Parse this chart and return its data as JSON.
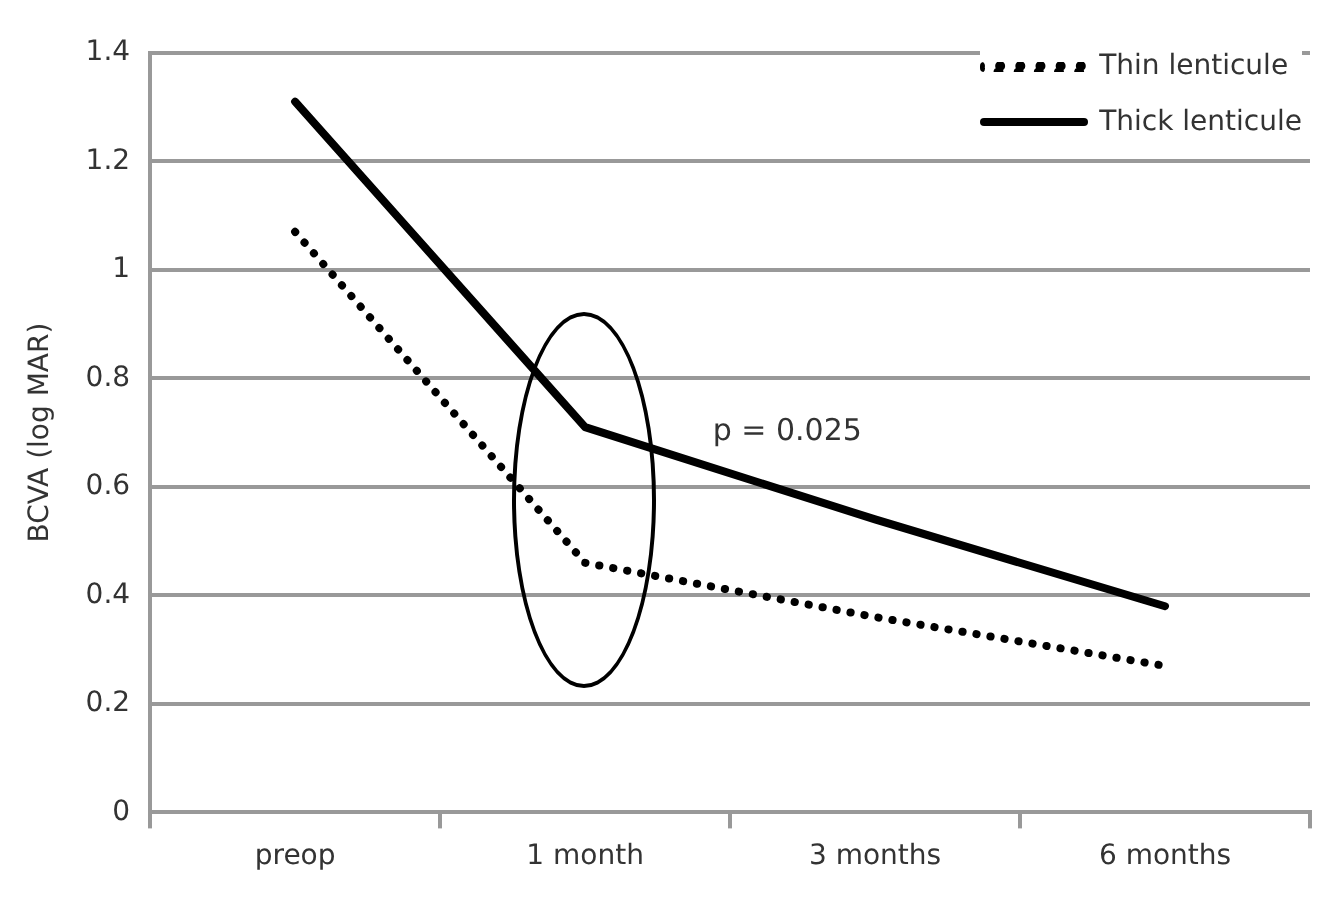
{
  "chart_data": {
    "type": "line",
    "ylabel": "BCVA (log MAR)",
    "categories": [
      "preop",
      "1 month",
      "3 months",
      "6 months"
    ],
    "series": [
      {
        "name": "Thin lenticule",
        "color": "#000000",
        "line_style": "dotted",
        "values": [
          1.07,
          0.46,
          0.36,
          0.27
        ]
      },
      {
        "name": "Thick lenticule",
        "color": "#000000",
        "line_style": "solid",
        "values": [
          1.31,
          0.71,
          0.54,
          0.38
        ]
      }
    ],
    "ylim": [
      0,
      1.4
    ],
    "yticks": [
      0,
      0.2,
      0.4,
      0.6,
      0.8,
      1,
      1.2,
      1.4
    ],
    "grid": "y",
    "legend": "top right",
    "marker": "none",
    "annotations": [
      "p = 0.025"
    ]
  }
}
